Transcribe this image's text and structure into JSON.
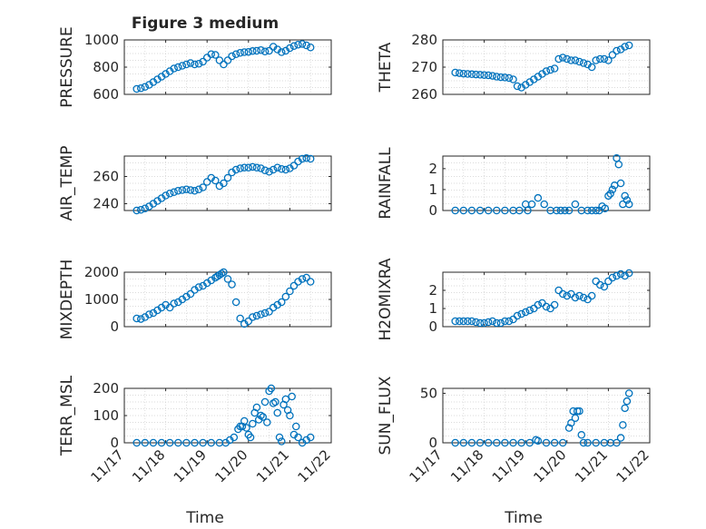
{
  "figure": {
    "title": "Figure 3 medium",
    "marker_color": "#0072BD"
  },
  "x_axis": {
    "label": "Time",
    "ticks": [
      "11/17",
      "11/18",
      "11/19",
      "11/20",
      "11/21",
      "11/22"
    ],
    "range": [
      0,
      5
    ]
  },
  "chart_data": [
    {
      "type": "scatter",
      "title": "Figure 3 medium",
      "ylabel": "PRESSURE",
      "ylim": [
        600,
        1000
      ],
      "yticks": [
        "600",
        "800",
        "1000"
      ],
      "grid": "minor",
      "x": [
        0.3,
        0.4,
        0.5,
        0.6,
        0.7,
        0.8,
        0.9,
        1.0,
        1.1,
        1.2,
        1.3,
        1.4,
        1.5,
        1.6,
        1.7,
        1.8,
        1.9,
        2.0,
        2.1,
        2.2,
        2.3,
        2.4,
        2.5,
        2.6,
        2.7,
        2.8,
        2.9,
        3.0,
        3.1,
        3.2,
        3.3,
        3.4,
        3.5,
        3.6,
        3.7,
        3.8,
        3.9,
        4.0,
        4.1,
        4.2,
        4.3,
        4.4,
        4.5
      ],
      "y": [
        640,
        645,
        655,
        670,
        690,
        710,
        730,
        750,
        770,
        790,
        800,
        810,
        820,
        830,
        820,
        825,
        840,
        870,
        895,
        890,
        850,
        820,
        850,
        880,
        895,
        905,
        910,
        912,
        918,
        920,
        925,
        915,
        920,
        950,
        930,
        910,
        920,
        940,
        955,
        965,
        970,
        960,
        945
      ]
    },
    {
      "type": "scatter",
      "ylabel": "THETA",
      "ylim": [
        260,
        280
      ],
      "yticks": [
        "260",
        "270",
        "280"
      ],
      "grid": "minor",
      "x": [
        0.3,
        0.4,
        0.5,
        0.6,
        0.7,
        0.8,
        0.9,
        1.0,
        1.1,
        1.2,
        1.3,
        1.4,
        1.5,
        1.6,
        1.7,
        1.8,
        1.9,
        2.0,
        2.1,
        2.2,
        2.3,
        2.4,
        2.5,
        2.6,
        2.7,
        2.8,
        2.9,
        3.0,
        3.1,
        3.2,
        3.3,
        3.4,
        3.5,
        3.6,
        3.7,
        3.8,
        3.9,
        4.0,
        4.1,
        4.2,
        4.3,
        4.4,
        4.5
      ],
      "y": [
        268,
        267.8,
        267.6,
        267.5,
        267.4,
        267.3,
        267.2,
        267.1,
        267,
        266.8,
        266.5,
        266.3,
        266.2,
        266,
        265.5,
        263,
        262.5,
        263.5,
        264.5,
        265.5,
        266.5,
        267.5,
        268.5,
        269,
        269.5,
        273,
        273.5,
        273,
        272.5,
        272.5,
        272,
        271.5,
        271,
        270,
        272.5,
        273,
        273,
        272.5,
        274.5,
        276,
        276.5,
        277.5,
        278
      ]
    },
    {
      "type": "scatter",
      "ylabel": "AIR_TEMP",
      "ylim": [
        235,
        275
      ],
      "yticks": [
        "240",
        "260"
      ],
      "grid": "minor",
      "x": [
        0.3,
        0.4,
        0.5,
        0.6,
        0.7,
        0.8,
        0.9,
        1.0,
        1.1,
        1.2,
        1.3,
        1.4,
        1.5,
        1.6,
        1.7,
        1.8,
        1.9,
        2.0,
        2.1,
        2.2,
        2.3,
        2.4,
        2.5,
        2.6,
        2.7,
        2.8,
        2.9,
        3.0,
        3.1,
        3.2,
        3.3,
        3.4,
        3.5,
        3.6,
        3.7,
        3.8,
        3.9,
        4.0,
        4.1,
        4.2,
        4.3,
        4.4,
        4.5
      ],
      "y": [
        235,
        235.5,
        236.5,
        238,
        240,
        242,
        244,
        246,
        247.5,
        248.5,
        249.5,
        250,
        250.5,
        250,
        249.5,
        250.5,
        252,
        256,
        259,
        257,
        253,
        255,
        259,
        263,
        265,
        266,
        266.5,
        266.5,
        267,
        266.5,
        266,
        264.5,
        263.5,
        265,
        266.5,
        265.5,
        265,
        266,
        268,
        271,
        273,
        273.5,
        273
      ]
    },
    {
      "type": "scatter",
      "ylabel": "RAINFALL",
      "ylim": [
        0,
        2.6
      ],
      "yticks": [
        "0",
        "1",
        "2"
      ],
      "grid": "minor",
      "x": [
        0.3,
        0.5,
        0.7,
        0.9,
        1.1,
        1.3,
        1.5,
        1.7,
        1.85,
        2.0,
        2.05,
        2.15,
        2.3,
        2.45,
        2.6,
        2.75,
        2.85,
        2.95,
        3.05,
        3.2,
        3.35,
        3.5,
        3.6,
        3.7,
        3.78,
        3.85,
        3.92,
        4.0,
        4.05,
        4.1,
        4.15,
        4.2,
        4.25,
        4.3,
        4.35,
        4.4,
        4.45,
        4.5
      ],
      "y": [
        0,
        0,
        0,
        0,
        0,
        0,
        0,
        0,
        0,
        0.3,
        0,
        0.3,
        0.6,
        0.3,
        0,
        0,
        0,
        0,
        0,
        0.3,
        0,
        0,
        0,
        0,
        0,
        0.2,
        0.1,
        0.7,
        0.8,
        1.0,
        1.2,
        2.5,
        2.2,
        1.3,
        0.3,
        0.7,
        0.5,
        0.3
      ]
    },
    {
      "type": "scatter",
      "ylabel": "MIXDEPTH",
      "ylim": [
        0,
        2000
      ],
      "yticks": [
        "0",
        "1000",
        "2000"
      ],
      "grid": "minor",
      "x": [
        0.3,
        0.4,
        0.5,
        0.6,
        0.7,
        0.8,
        0.9,
        1.0,
        1.1,
        1.2,
        1.3,
        1.4,
        1.5,
        1.6,
        1.7,
        1.8,
        1.9,
        2.0,
        2.1,
        2.2,
        2.25,
        2.3,
        2.35,
        2.4,
        2.5,
        2.6,
        2.7,
        2.8,
        2.9,
        3.0,
        3.1,
        3.2,
        3.3,
        3.4,
        3.5,
        3.6,
        3.7,
        3.8,
        3.9,
        4.0,
        4.1,
        4.2,
        4.3,
        4.4,
        4.5
      ],
      "y": [
        300,
        280,
        350,
        450,
        500,
        600,
        700,
        800,
        700,
        850,
        900,
        1000,
        1100,
        1200,
        1350,
        1450,
        1500,
        1600,
        1700,
        1800,
        1850,
        1900,
        1950,
        2000,
        1750,
        1550,
        900,
        300,
        100,
        200,
        350,
        400,
        450,
        500,
        550,
        700,
        800,
        900,
        1100,
        1300,
        1500,
        1650,
        1750,
        1800,
        1650
      ]
    },
    {
      "type": "scatter",
      "ylabel": "H2OMIXRA",
      "ylim": [
        0,
        3
      ],
      "yticks": [
        "0",
        "1",
        "2"
      ],
      "grid": "minor",
      "x": [
        0.3,
        0.4,
        0.5,
        0.6,
        0.7,
        0.8,
        0.9,
        1.0,
        1.1,
        1.2,
        1.3,
        1.4,
        1.5,
        1.6,
        1.7,
        1.8,
        1.9,
        2.0,
        2.1,
        2.2,
        2.3,
        2.4,
        2.5,
        2.6,
        2.7,
        2.8,
        2.9,
        3.0,
        3.1,
        3.2,
        3.3,
        3.4,
        3.5,
        3.6,
        3.7,
        3.8,
        3.9,
        4.0,
        4.1,
        4.2,
        4.3,
        4.4,
        4.5
      ],
      "y": [
        0.3,
        0.3,
        0.3,
        0.3,
        0.3,
        0.25,
        0.2,
        0.2,
        0.25,
        0.3,
        0.2,
        0.2,
        0.3,
        0.3,
        0.4,
        0.6,
        0.7,
        0.8,
        0.9,
        1.0,
        1.2,
        1.3,
        1.1,
        1.0,
        1.2,
        2.0,
        1.8,
        1.7,
        1.8,
        1.6,
        1.7,
        1.6,
        1.5,
        1.7,
        2.5,
        2.3,
        2.2,
        2.5,
        2.7,
        2.8,
        2.9,
        2.8,
        2.95
      ]
    },
    {
      "type": "scatter",
      "ylabel": "TERR_MSL",
      "ylim": [
        0,
        200
      ],
      "yticks": [
        "0",
        "100",
        "200"
      ],
      "grid": "minor",
      "x": [
        0.3,
        0.5,
        0.7,
        0.9,
        1.1,
        1.3,
        1.5,
        1.7,
        1.9,
        2.1,
        2.3,
        2.45,
        2.55,
        2.65,
        2.75,
        2.8,
        2.85,
        2.9,
        2.95,
        3.0,
        3.05,
        3.1,
        3.15,
        3.2,
        3.25,
        3.3,
        3.35,
        3.4,
        3.45,
        3.5,
        3.55,
        3.6,
        3.65,
        3.7,
        3.75,
        3.8,
        3.85,
        3.9,
        3.95,
        4.0,
        4.05,
        4.1,
        4.15,
        4.2,
        4.3,
        4.4,
        4.5
      ],
      "y": [
        0,
        0,
        0,
        0,
        0,
        0,
        0,
        0,
        0,
        0,
        0,
        0,
        10,
        20,
        50,
        60,
        60,
        80,
        55,
        30,
        20,
        70,
        110,
        130,
        85,
        100,
        95,
        150,
        75,
        190,
        200,
        145,
        150,
        110,
        20,
        5,
        140,
        160,
        120,
        100,
        170,
        30,
        60,
        20,
        0,
        10,
        20
      ]
    },
    {
      "type": "scatter",
      "ylabel": "SUN_FLUX",
      "ylim": [
        0,
        55
      ],
      "yticks": [
        "0",
        "50"
      ],
      "grid": "minor",
      "x": [
        0.3,
        0.5,
        0.7,
        0.9,
        1.1,
        1.3,
        1.5,
        1.7,
        1.9,
        2.1,
        2.25,
        2.3,
        2.5,
        2.7,
        2.9,
        3.05,
        3.1,
        3.15,
        3.2,
        3.25,
        3.3,
        3.35,
        3.4,
        3.5,
        3.7,
        3.9,
        4.05,
        4.2,
        4.3,
        4.35,
        4.4,
        4.45,
        4.5
      ],
      "y": [
        0,
        0,
        0,
        0,
        0,
        0,
        0,
        0,
        0,
        0,
        3,
        2,
        0,
        0,
        0,
        15,
        20,
        32,
        25,
        32,
        32,
        8,
        0,
        0,
        0,
        0,
        0,
        0,
        5,
        18,
        35,
        42,
        50
      ]
    }
  ]
}
